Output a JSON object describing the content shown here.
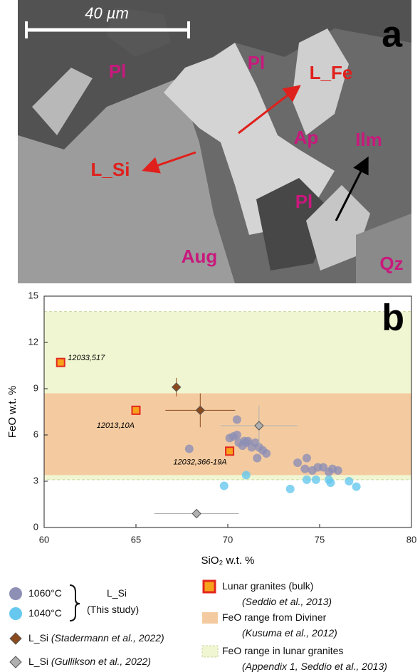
{
  "image_panel": {
    "panel_label": "a",
    "scale_bar": "40 µm",
    "labels": [
      "Pl",
      "Pl",
      "L_Fe",
      "Ap",
      "Ilm",
      "L_Si",
      "Pl",
      "Aug",
      "Qz"
    ]
  },
  "chart_data": {
    "type": "scatter",
    "panel_label": "b",
    "xlabel": "SiO₂ w.t. %",
    "ylabel": "FeO w.t. %",
    "xlim": [
      60,
      80
    ],
    "ylim": [
      0,
      15
    ],
    "xticks": [
      60,
      65,
      70,
      75,
      80
    ],
    "yticks": [
      0,
      3,
      6,
      9,
      12,
      15
    ],
    "study_label": {
      "name": "L_Si",
      "note": "(This study)"
    },
    "bands": [
      {
        "name": "FeO range in lunar granites",
        "citation": "(Appendix 1, Seddio et al., 2013)",
        "color": "#f1f6d2",
        "range": [
          3.1,
          14
        ]
      },
      {
        "name": "FeO range from Diviner",
        "citation": "(Kusuma et al., 2012)",
        "color": "#f4cba0",
        "range": [
          3.4,
          8.7
        ]
      }
    ],
    "series": [
      {
        "name": "1060°C",
        "color": "#8d8fb5",
        "marker": "circle",
        "x": [
          67.9,
          70.1,
          70.3,
          70.5,
          70.6,
          70.8,
          70.9,
          71,
          71.1,
          71.3,
          71.5,
          71.7,
          71.9,
          72.1,
          70.5,
          71.6,
          73.8,
          74.2,
          74.3,
          74.6,
          74.9,
          75.2,
          75.5,
          75.7,
          76
        ],
        "values": [
          5.1,
          5.8,
          5.9,
          6.0,
          5.5,
          5.3,
          5.6,
          5.5,
          5.6,
          5.2,
          5.5,
          5.2,
          5.0,
          4.8,
          7.0,
          4.5,
          4.2,
          3.8,
          4.5,
          3.7,
          3.9,
          3.9,
          3.6,
          3.8,
          3.7
        ]
      },
      {
        "name": "1040°C",
        "color": "#66c8ee",
        "marker": "circle",
        "x": [
          69.8,
          71,
          73.4,
          74.3,
          74.8,
          75.5,
          75.6,
          76.6,
          77
        ],
        "values": [
          2.7,
          3.4,
          2.5,
          3.1,
          3.1,
          3.1,
          2.9,
          3.0,
          2.65
        ]
      },
      {
        "name": "L_Si",
        "citation": "(Stadermann et al., 2022)",
        "color": "#8b4a1e",
        "marker": "diamond",
        "x": [
          67.2,
          68.5
        ],
        "values": [
          9.1,
          7.6
        ],
        "x_errors": [
          null,
          1.9
        ],
        "y_errors": [
          0.6,
          1.1
        ]
      },
      {
        "name": "L_Si",
        "citation": "(Gullikson et al., 2022)",
        "color": "#b0b0b0",
        "marker": "diamond",
        "x": [
          71.7,
          68.3
        ],
        "values": [
          6.6,
          0.9
        ],
        "x_errors": [
          2.1,
          2.3
        ],
        "y_errors": [
          1.3,
          null
        ]
      },
      {
        "name": "Lunar granites (bulk)",
        "citation": "(Seddio et al., 2013)",
        "color": "#f7a21b",
        "edge": "#e3261f",
        "marker": "square",
        "x": [
          60.9,
          65,
          70.1
        ],
        "values": [
          10.7,
          7.6,
          4.95
        ],
        "point_labels": [
          "12033,517",
          "12013,10A",
          "12032,366-19A"
        ]
      }
    ]
  }
}
